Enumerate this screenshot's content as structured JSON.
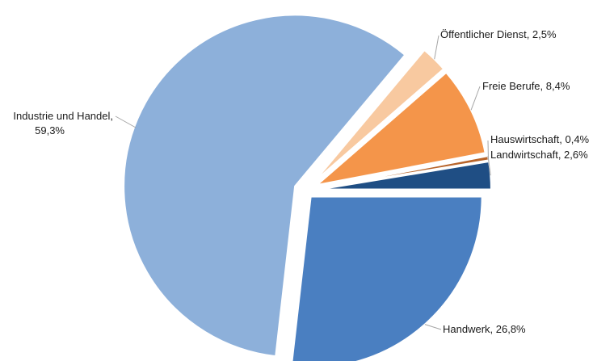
{
  "chart_data": {
    "type": "pie",
    "title": "",
    "slices": [
      {
        "label": "Handwerk, 26,8%",
        "name": "Handwerk",
        "value": 26.8,
        "color": "#4a7fc1"
      },
      {
        "label": "Industrie und Handel,",
        "label2": "59,3%",
        "name": "Industrie und Handel",
        "value": 59.3,
        "color": "#8db0da"
      },
      {
        "label": "Öffentlicher Dienst, 2,5%",
        "name": "Öffentlicher Dienst",
        "value": 2.5,
        "color": "#f8c9a0"
      },
      {
        "label": "Freie Berufe, 8,4%",
        "name": "Freie Berufe",
        "value": 8.4,
        "color": "#f4954a"
      },
      {
        "label": "Hauswirtschaft, 0,4%",
        "name": "Hauswirtschaft",
        "value": 0.4,
        "color": "#b8642a"
      },
      {
        "label": "Landwirtschaft, 2,6%",
        "name": "Landwirtschaft",
        "value": 2.6,
        "color": "#1f4e84"
      }
    ],
    "legend": "none",
    "data_labels": "outside"
  }
}
